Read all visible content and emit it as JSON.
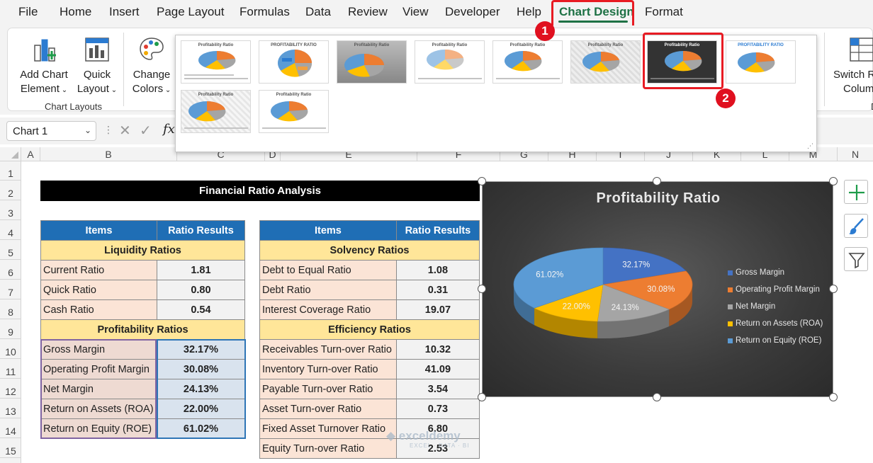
{
  "menu": {
    "tabs": [
      "File",
      "Home",
      "Insert",
      "Page Layout",
      "Formulas",
      "Data",
      "Review",
      "View",
      "Developer",
      "Help",
      "Chart Design",
      "Format"
    ],
    "active_tab": "Chart Design"
  },
  "annotations": {
    "step1": "1",
    "step2": "2"
  },
  "ribbon": {
    "add_chart_element": [
      "Add Chart",
      "Element"
    ],
    "quick_layout": [
      "Quick",
      "Layout"
    ],
    "change_colors": [
      "Change",
      "Colors"
    ],
    "group_label": "Chart Layouts",
    "switch_row_column": [
      "Switch R",
      "Colum"
    ],
    "cut_off_letter": "D"
  },
  "gallery": {
    "thumbnails": [
      {
        "title": "Profitability Ratio",
        "style": "style1"
      },
      {
        "title": "PROFITABILITY RATIO",
        "style": "style2"
      },
      {
        "title": "Profitability Ratio",
        "style": "style3"
      },
      {
        "title": "Profitability Ratio",
        "style": "style4"
      },
      {
        "title": "Profitability Ratio",
        "style": "style5"
      },
      {
        "title": "Profitability Ratio",
        "style": "style6"
      },
      {
        "title": "Profitability Ratio",
        "style": "style7-dark"
      },
      {
        "title": "PROFITABILITY RATIO",
        "style": "style8"
      },
      {
        "title": "Profitability Ratio",
        "style": "style9"
      },
      {
        "title": "Profitability Ratio",
        "style": "style10"
      }
    ],
    "selected_index": 6
  },
  "formula_bar": {
    "name_box": "Chart 1",
    "fx": "fx"
  },
  "columns": [
    "A",
    "B",
    "C",
    "D",
    "E",
    "F",
    "G",
    "H",
    "I",
    "J",
    "K",
    "L",
    "M",
    "N"
  ],
  "rows": [
    "1",
    "2",
    "3",
    "4",
    "5",
    "6",
    "7",
    "8",
    "9",
    "10",
    "11",
    "12",
    "13",
    "14",
    "15"
  ],
  "sheet": {
    "title": "Financial Ratio Analysis",
    "left_table": {
      "headers": [
        "Items",
        "Ratio Results"
      ],
      "sections": [
        {
          "name": "Liquidity Ratios",
          "rows": [
            [
              "Current Ratio",
              "1.81"
            ],
            [
              "Quick Ratio",
              "0.80"
            ],
            [
              "Cash Ratio",
              "0.54"
            ]
          ]
        },
        {
          "name": "Profitability Ratios",
          "rows": [
            [
              "Gross Margin",
              "32.17%"
            ],
            [
              "Operating Profit Margin",
              "30.08%"
            ],
            [
              "Net Margin",
              "24.13%"
            ],
            [
              "Return on Assets (ROA)",
              "22.00%"
            ],
            [
              "Return on Equity (ROE)",
              "61.02%"
            ]
          ]
        }
      ]
    },
    "right_table": {
      "headers": [
        "Items",
        "Ratio Results"
      ],
      "sections": [
        {
          "name": "Solvency Ratios",
          "rows": [
            [
              "Debt to Equal Ratio",
              "1.08"
            ],
            [
              "Debt Ratio",
              "0.31"
            ],
            [
              "Interest Coverage Ratio",
              "19.07"
            ]
          ]
        },
        {
          "name": "Efficiency Ratios",
          "rows": [
            [
              "Receivables Turn-over Ratio",
              "10.32"
            ],
            [
              "Inventory Turn-over Ratio",
              "41.09"
            ],
            [
              "Payable Turn-over Ratio",
              "3.54"
            ],
            [
              "Asset Turn-over Ratio",
              "0.73"
            ],
            [
              "Fixed Asset Turnover Ratio",
              "6.80"
            ],
            [
              "Equity Turn-over Ratio",
              "2.53"
            ]
          ]
        }
      ]
    }
  },
  "chart_data": {
    "type": "pie",
    "title": "Profitability Ratio",
    "categories": [
      "Gross Margin",
      "Operating Profit Margin",
      "Net Margin",
      "Return on Assets (ROA)",
      "Return on Equity (ROE)"
    ],
    "values": [
      32.17,
      30.08,
      24.13,
      22.0,
      61.02
    ],
    "data_labels": [
      "32.17%",
      "30.08%",
      "24.13%",
      "22.00%",
      "61.02%"
    ],
    "colors": [
      "#4472c4",
      "#ed7d31",
      "#a5a5a5",
      "#ffc000",
      "#5b9bd5"
    ],
    "legend_position": "right",
    "three_d": true
  },
  "watermark": {
    "brand": "exceldemy",
    "tagline": "EXCEL · DATA · BI"
  }
}
